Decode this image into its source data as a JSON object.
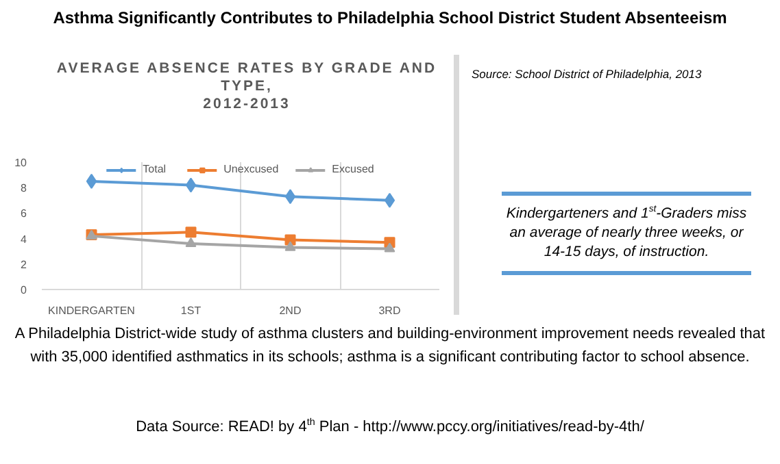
{
  "chart_data": {
    "type": "line",
    "title": "AVERAGE ABSENCE RATES BY GRADE AND TYPE,\n2012-2013",
    "categories": [
      "KINDERGARTEN",
      "1ST",
      "2ND",
      "3RD"
    ],
    "series": [
      {
        "name": "Total",
        "color": "#5b9bd5",
        "marker": "diamond",
        "values": [
          8.5,
          8.2,
          7.3,
          7.0
        ]
      },
      {
        "name": "Unexcused",
        "color": "#ed7d31",
        "marker": "square",
        "values": [
          4.3,
          4.5,
          3.9,
          3.7
        ]
      },
      {
        "name": "Excused",
        "color": "#a5a5a5",
        "marker": "triangle",
        "values": [
          4.2,
          3.6,
          3.3,
          3.2
        ]
      }
    ],
    "ylim": [
      0,
      10
    ],
    "yticks": [
      0,
      2,
      4,
      6,
      8,
      10
    ],
    "grid": "x",
    "legend": "top",
    "annotations": [
      "Asthma Significantly Contributes to Philadelphia School District Student Absenteeism",
      "Source: School District of Philadelphia, 2013",
      "Kindergarteners and 1$^{st}$-Graders miss an average of nearly three weeks, or 14-15 days, of instruction.",
      "A Philadelphia District-wide study of asthma clusters and building-environment improvement needs revealed that with 35,000 identified asthmatics in its schools; asthma is a significant contributing factor to school absence.",
      "Data Source: READ! by 4$^{th}$ Plan - http://www.pccy.org/initiatives/read-by-4th/"
    ]
  }
}
